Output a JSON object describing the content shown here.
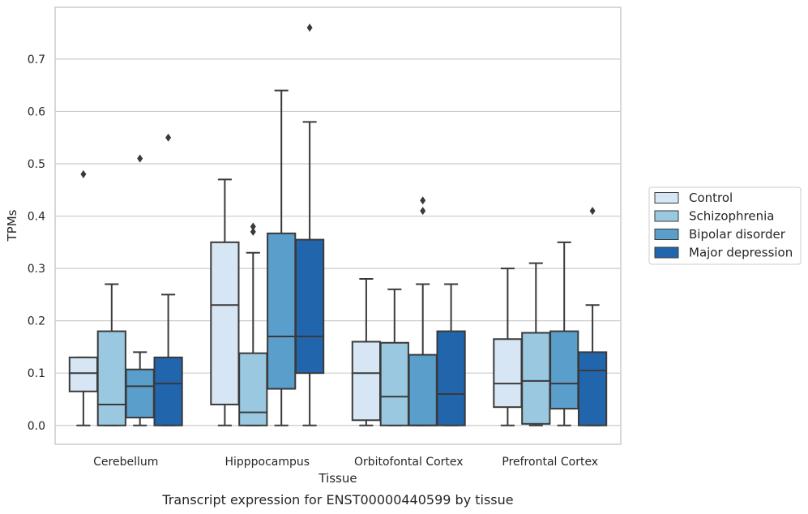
{
  "chart_data": {
    "type": "box",
    "title": "",
    "caption": "Transcript expression for ENST00000440599 by tissue",
    "xlabel": "Tissue",
    "ylabel": "TPMs",
    "ylim": [
      -0.036,
      0.799
    ],
    "yticks": [
      "0.0",
      "0.1",
      "0.2",
      "0.3",
      "0.4",
      "0.5",
      "0.6",
      "0.7"
    ],
    "grid": "horizontal",
    "legend_position": "right",
    "categories": [
      "Cerebellum",
      "Hipppocampus",
      "Orbitofontal Cortex",
      "Prefrontal Cortex"
    ],
    "series": [
      {
        "name": "Control",
        "color": "#d6e6f4",
        "boxes": [
          {
            "whisker_low": 0.0,
            "q1": 0.065,
            "median": 0.1,
            "q3": 0.13,
            "whisker_high": 0.13,
            "outliers": [
              0.48
            ]
          },
          {
            "whisker_low": 0.0,
            "q1": 0.04,
            "median": 0.23,
            "q3": 0.35,
            "whisker_high": 0.47,
            "outliers": []
          },
          {
            "whisker_low": 0.0,
            "q1": 0.01,
            "median": 0.1,
            "q3": 0.16,
            "whisker_high": 0.28,
            "outliers": []
          },
          {
            "whisker_low": 0.0,
            "q1": 0.035,
            "median": 0.08,
            "q3": 0.165,
            "whisker_high": 0.3,
            "outliers": []
          }
        ]
      },
      {
        "name": "Schizophrenia",
        "color": "#9ac8e0",
        "boxes": [
          {
            "whisker_low": 0.0,
            "q1": 0.0,
            "median": 0.04,
            "q3": 0.18,
            "whisker_high": 0.27,
            "outliers": []
          },
          {
            "whisker_low": 0.0,
            "q1": 0.0,
            "median": 0.025,
            "q3": 0.138,
            "whisker_high": 0.33,
            "outliers": [
              0.37,
              0.38
            ]
          },
          {
            "whisker_low": 0.0,
            "q1": 0.0,
            "median": 0.055,
            "q3": 0.158,
            "whisker_high": 0.26,
            "outliers": []
          },
          {
            "whisker_low": 0.0,
            "q1": 0.003,
            "median": 0.085,
            "q3": 0.177,
            "whisker_high": 0.31,
            "outliers": []
          }
        ]
      },
      {
        "name": "Bipolar disorder",
        "color": "#5a9ecc",
        "boxes": [
          {
            "whisker_low": 0.0,
            "q1": 0.015,
            "median": 0.075,
            "q3": 0.107,
            "whisker_high": 0.14,
            "outliers": [
              0.51
            ]
          },
          {
            "whisker_low": 0.0,
            "q1": 0.07,
            "median": 0.17,
            "q3": 0.367,
            "whisker_high": 0.64,
            "outliers": []
          },
          {
            "whisker_low": 0.0,
            "q1": 0.0,
            "median": 0.0,
            "q3": 0.135,
            "whisker_high": 0.27,
            "outliers": [
              0.41,
              0.43
            ]
          },
          {
            "whisker_low": 0.0,
            "q1": 0.032,
            "median": 0.08,
            "q3": 0.18,
            "whisker_high": 0.35,
            "outliers": []
          }
        ]
      },
      {
        "name": "Major depression",
        "color": "#2166ac",
        "boxes": [
          {
            "whisker_low": 0.0,
            "q1": 0.0,
            "median": 0.08,
            "q3": 0.13,
            "whisker_high": 0.25,
            "outliers": [
              0.55
            ]
          },
          {
            "whisker_low": 0.0,
            "q1": 0.1,
            "median": 0.17,
            "q3": 0.355,
            "whisker_high": 0.58,
            "outliers": [
              0.76
            ]
          },
          {
            "whisker_low": 0.0,
            "q1": 0.0,
            "median": 0.06,
            "q3": 0.18,
            "whisker_high": 0.27,
            "outliers": []
          },
          {
            "whisker_low": 0.0,
            "q1": 0.0,
            "median": 0.105,
            "q3": 0.14,
            "whisker_high": 0.23,
            "outliers": [
              0.41
            ]
          }
        ]
      }
    ]
  }
}
